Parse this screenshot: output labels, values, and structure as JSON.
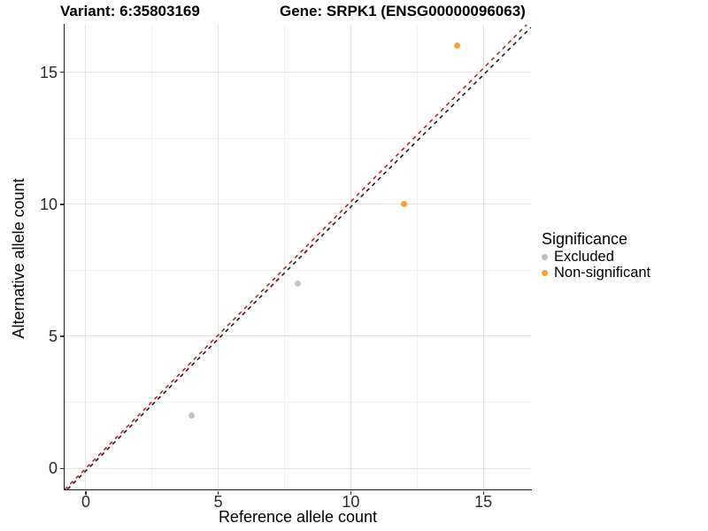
{
  "title_left": "Variant: 6:35803169",
  "title_right": "Gene: SRPK1 (ENSG00000096063)",
  "x_axis": {
    "label": "Reference allele count",
    "tick_labels": [
      "0",
      "5",
      "10",
      "15"
    ]
  },
  "y_axis": {
    "label": "Alternative allele count",
    "tick_labels": [
      "0",
      "5",
      "10",
      "15"
    ]
  },
  "legend": {
    "title": "Significance",
    "items": [
      {
        "label": "Excluded",
        "color": "#bebebe"
      },
      {
        "label": "Non-significant",
        "color": "#fba32c"
      }
    ]
  },
  "colors": {
    "background": "#ffffff",
    "grid_major": "#e3e3e3",
    "grid_minor": "#f2f2f2",
    "axis_line": "#1a1a1a",
    "excluded_point": "#c3c3c3",
    "non_significant_point": "#fba32c",
    "identity_line": "#1c1c1c",
    "expected_line": "#b4232a"
  },
  "chart_data": {
    "type": "scatter",
    "title": "Variant: 6:35803169 / Gene: SRPK1 (ENSG00000096063)",
    "xlabel": "Reference allele count",
    "ylabel": "Alternative allele count",
    "xlim": [
      -0.8,
      16.8
    ],
    "ylim": [
      -0.8,
      16.8
    ],
    "x_ticks": [
      0,
      5,
      10,
      15
    ],
    "y_ticks": [
      0,
      5,
      10,
      15
    ],
    "x_minor_ticks": [
      2.5,
      7.5,
      12.5
    ],
    "y_minor_ticks": [
      2.5,
      7.5,
      12.5
    ],
    "grid": true,
    "legend_title": "Significance",
    "legend_position": "right",
    "series": [
      {
        "name": "Excluded",
        "color": "#c3c3c3",
        "points": [
          [
            4,
            2
          ],
          [
            8,
            7
          ]
        ]
      },
      {
        "name": "Non-significant",
        "color": "#fba32c",
        "points": [
          [
            12,
            10
          ],
          [
            14,
            16
          ]
        ]
      }
    ],
    "reference_lines": [
      {
        "name": "expected-ratio-line",
        "color": "#b4232a",
        "style": "dashed",
        "slope": 1.01,
        "intercept": 0
      },
      {
        "name": "identity-line",
        "color": "#1c1c1c",
        "style": "dashed",
        "slope": 1.0,
        "intercept": -0.1
      }
    ]
  }
}
